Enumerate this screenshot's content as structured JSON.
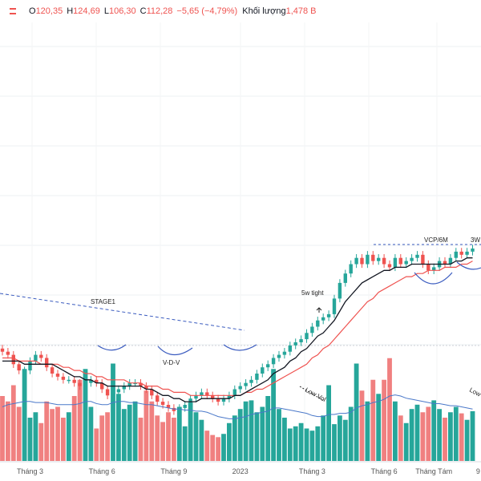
{
  "header": {
    "open_label": "O",
    "open": "120,35",
    "high_label": "H",
    "high": "124,69",
    "low_label": "L",
    "low": "106,30",
    "close_label": "C",
    "close": "112,28",
    "change": "−5,65 (−4,79%)",
    "volume_label": "Khối lượng",
    "volume": "1,478 B"
  },
  "colors": {
    "up": "#26a69a",
    "down": "#ef5350",
    "ma_fast": "#131722",
    "ma_slow": "#ef5350",
    "ma_vol": "#4a78c9",
    "annotation": "#3a5bbf"
  },
  "chart_data": {
    "type": "candlestick",
    "x_ticks": [
      {
        "label": "Tháng 3",
        "week": 5
      },
      {
        "label": "Tháng 6",
        "week": 18
      },
      {
        "label": "Tháng 9",
        "week": 31
      },
      {
        "label": "2023",
        "week": 43
      },
      {
        "label": "Tháng 3",
        "week": 56
      },
      {
        "label": "Tháng 6",
        "week": 69
      },
      {
        "label": "Tháng Tám",
        "week": 78
      },
      {
        "label": "9",
        "week": 86
      }
    ],
    "close": [
      67,
      66,
      63,
      61,
      61,
      64,
      66,
      65,
      62,
      60,
      59,
      58,
      58,
      57,
      56,
      57,
      58,
      57,
      55,
      53,
      54,
      55,
      56,
      57,
      57,
      56,
      55,
      53,
      51,
      50,
      49,
      48,
      49,
      50,
      52,
      53,
      54,
      53,
      52,
      51,
      52,
      53,
      55,
      56,
      57,
      58,
      60,
      62,
      63,
      65,
      66,
      67,
      69,
      70,
      71,
      73,
      75,
      77,
      78,
      79,
      84,
      89,
      92,
      95,
      97,
      95,
      98,
      96,
      97,
      95,
      94,
      97,
      95,
      96,
      97,
      98,
      95,
      93,
      94,
      96,
      95,
      97,
      99,
      98,
      99,
      100
    ],
    "ma_fast": [
      64,
      64,
      64,
      64,
      63,
      63,
      63,
      63,
      63,
      63,
      62,
      61,
      60,
      59,
      59,
      58,
      58,
      57,
      57,
      56,
      56,
      56,
      56,
      56,
      56,
      56,
      55,
      55,
      54,
      53,
      53,
      52,
      52,
      51,
      51,
      51,
      52,
      52,
      52,
      52,
      52,
      52,
      53,
      53,
      54,
      55,
      56,
      57,
      58,
      60,
      61,
      62,
      64,
      65,
      67,
      68,
      70,
      72,
      73,
      75,
      77,
      80,
      83,
      85,
      87,
      89,
      90,
      91,
      92,
      93,
      93,
      94,
      94,
      94,
      95,
      95,
      95,
      95,
      95,
      95,
      95,
      95,
      96,
      96,
      97,
      97
    ],
    "ma_slow": [
      65,
      65,
      65,
      64,
      64,
      64,
      64,
      63,
      63,
      63,
      63,
      62,
      62,
      61,
      61,
      60,
      60,
      59,
      59,
      58,
      58,
      58,
      58,
      57,
      57,
      57,
      56,
      56,
      56,
      55,
      55,
      54,
      54,
      54,
      53,
      53,
      53,
      53,
      53,
      53,
      53,
      53,
      53,
      53,
      54,
      54,
      55,
      55,
      56,
      57,
      58,
      59,
      60,
      61,
      62,
      63,
      65,
      66,
      68,
      69,
      71,
      73,
      75,
      77,
      79,
      81,
      83,
      84,
      86,
      87,
      88,
      89,
      90,
      91,
      91,
      92,
      92,
      93,
      93,
      93,
      94,
      94,
      94,
      95,
      95,
      96
    ],
    "volume": [
      60,
      55,
      70,
      50,
      85,
      40,
      45,
      35,
      55,
      48,
      50,
      40,
      45,
      60,
      75,
      85,
      50,
      30,
      42,
      45,
      90,
      62,
      48,
      52,
      55,
      40,
      65,
      55,
      42,
      36,
      45,
      40,
      50,
      32,
      54,
      45,
      38,
      28,
      24,
      22,
      25,
      35,
      42,
      48,
      55,
      56,
      45,
      50,
      60,
      85,
      48,
      40,
      30,
      32,
      35,
      30,
      28,
      32,
      42,
      70,
      34,
      42,
      38,
      50,
      90,
      65,
      55,
      75,
      62,
      75,
      95,
      55,
      42,
      35,
      48,
      52,
      45,
      50,
      56,
      48,
      40,
      45,
      50,
      44,
      38,
      46
    ],
    "vol_ma": [
      50,
      52,
      53,
      54,
      55,
      55,
      54,
      54,
      54,
      53,
      52,
      52,
      52,
      52,
      53,
      55,
      55,
      53,
      52,
      52,
      54,
      55,
      55,
      54,
      54,
      53,
      52,
      52,
      51,
      50,
      49,
      48,
      48,
      47,
      47,
      46,
      46,
      45,
      43,
      41,
      40,
      39,
      39,
      40,
      41,
      43,
      44,
      45,
      46,
      49,
      49,
      48,
      47,
      46,
      45,
      44,
      42,
      41,
      41,
      43,
      43,
      44,
      44,
      45,
      49,
      51,
      52,
      54,
      55,
      57,
      60,
      61,
      60,
      58,
      57,
      56,
      55,
      54,
      53,
      53,
      52,
      51,
      51,
      50,
      49,
      48
    ],
    "annotations": {
      "stage": "STAGE1",
      "vdv": "V-D-V",
      "tight": "5w tight",
      "vcp": "VCP/6M",
      "three_w": "3W",
      "low_vol_1": "Low Vol",
      "low_vol_2": "Low"
    }
  }
}
